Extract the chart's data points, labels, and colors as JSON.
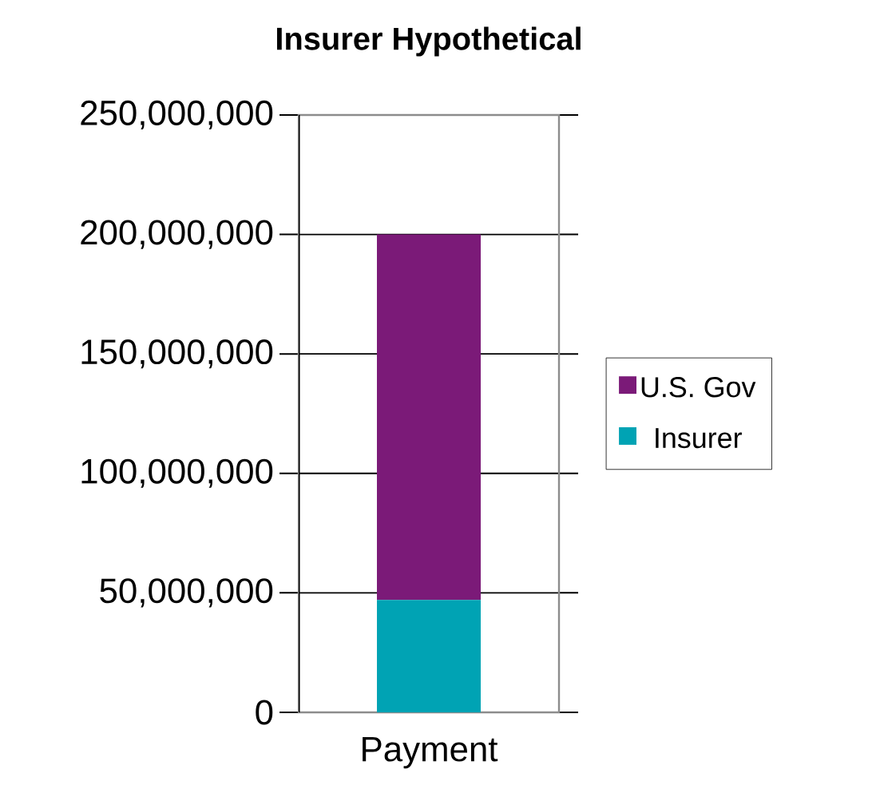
{
  "chart_data": {
    "type": "bar",
    "title": "Insurer Hypothetical",
    "stacked": true,
    "categories": [
      "Payment"
    ],
    "series": [
      {
        "name": "Insurer",
        "color": "#00a3b4",
        "values": [
          47000000
        ]
      },
      {
        "name": "U.S. Gov",
        "color": "#7b1a78",
        "values": [
          153000000
        ]
      }
    ],
    "ylim": [
      0,
      250000000
    ],
    "yticks": [
      0,
      {
        "value": 50000000,
        "label": "50,000,000"
      },
      {
        "value": 100000000,
        "label": "100,000,000"
      },
      {
        "value": 150000000,
        "label": "150,000,000"
      },
      {
        "value": 200000000,
        "label": "200,000,000"
      },
      {
        "value": 250000000,
        "label": "250,000,000"
      }
    ],
    "grid": "y",
    "legend": "right"
  }
}
